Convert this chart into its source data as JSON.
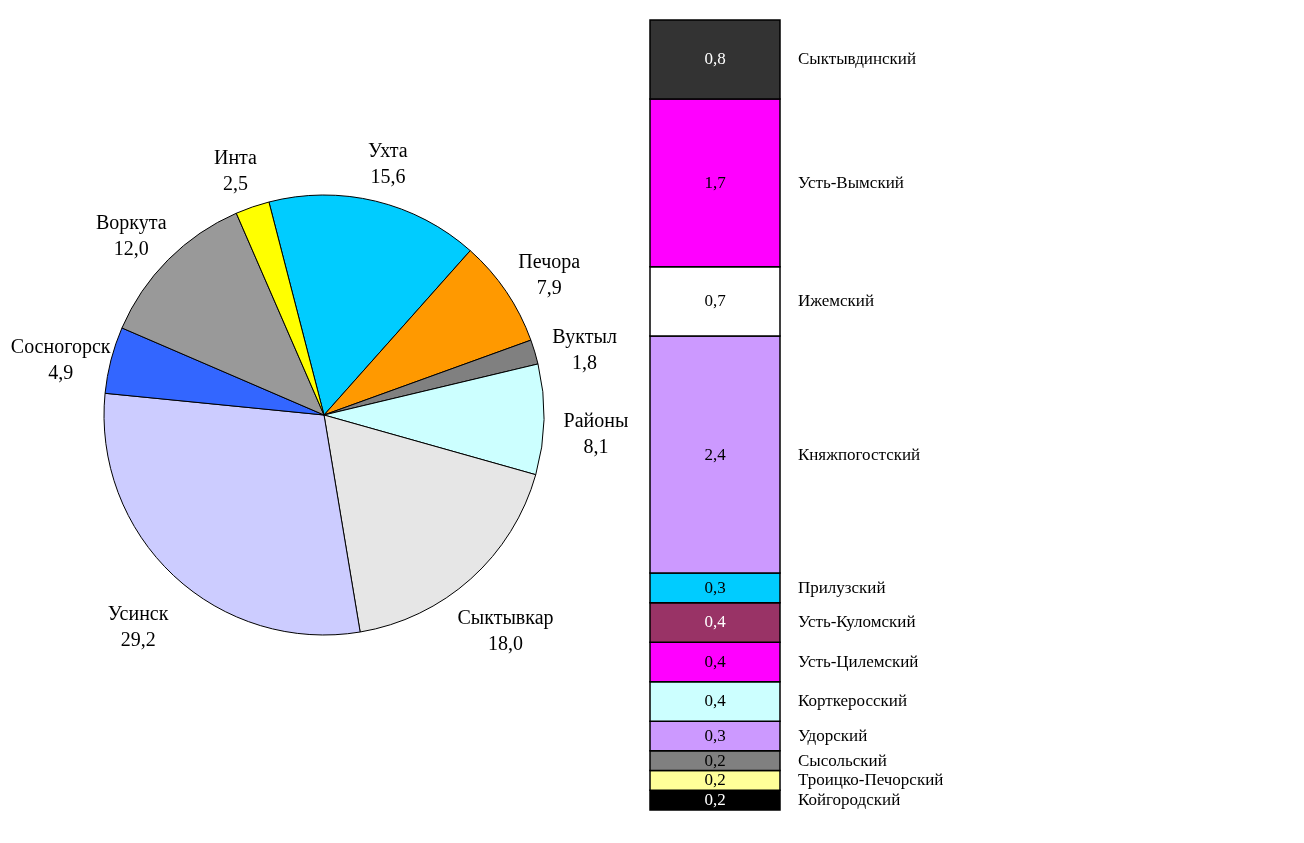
{
  "chart_data": [
    {
      "type": "pie",
      "categories": [
        "Ухта",
        "Печора",
        "Вуктыл",
        "Районы",
        "Сыктывкар",
        "Усинск",
        "Сосногорск",
        "Воркута",
        "Инта"
      ],
      "values": [
        15.6,
        7.9,
        1.8,
        8.1,
        18.0,
        29.2,
        4.9,
        12.0,
        2.5
      ],
      "value_labels": [
        "15,6",
        "7,9",
        "1,8",
        "8,1",
        "18,0",
        "29,2",
        "4,9",
        "12,0",
        "2,5"
      ],
      "colors": [
        "#00ccff",
        "#ff9900",
        "#808080",
        "#ccffff",
        "#e6e6e6",
        "#ccccff",
        "#3366ff",
        "#999999",
        "#ffff00"
      ]
    },
    {
      "type": "bar",
      "stacked": true,
      "categories": [
        null
      ],
      "series": [
        {
          "name": "Койгородский",
          "color": "#000000",
          "values": [
            0.2
          ],
          "value_labels": [
            "0,2"
          ]
        },
        {
          "name": "Троицко-Печорский",
          "color": "#ffff99",
          "values": [
            0.2
          ],
          "value_labels": [
            "0,2"
          ]
        },
        {
          "name": "Сысольский",
          "color": "#808080",
          "values": [
            0.2
          ],
          "value_labels": [
            "0,2"
          ]
        },
        {
          "name": "Удорский",
          "color": "#cc99ff",
          "values": [
            0.3
          ],
          "value_labels": [
            "0,3"
          ]
        },
        {
          "name": "Корткеросский",
          "color": "#ccffff",
          "values": [
            0.4
          ],
          "value_labels": [
            "0,4"
          ]
        },
        {
          "name": "Усть-Цилемский",
          "color": "#ff00ff",
          "values": [
            0.4
          ],
          "value_labels": [
            "0,4"
          ]
        },
        {
          "name": "Усть-Куломский",
          "color": "#993366",
          "values": [
            0.4
          ],
          "value_labels": [
            "0,4"
          ]
        },
        {
          "name": "Прилузский",
          "color": "#00ccff",
          "values": [
            0.3
          ],
          "value_labels": [
            "0,3"
          ]
        },
        {
          "name": "Княжпогостский",
          "color": "#cc99ff",
          "values": [
            2.4
          ],
          "value_labels": [
            "2,4"
          ]
        },
        {
          "name": "Ижемский",
          "color": "#ffffff",
          "values": [
            0.7
          ],
          "value_labels": [
            "0,7"
          ]
        },
        {
          "name": "Усть-Вымский",
          "color": "#ff00ff",
          "values": [
            1.7
          ],
          "value_labels": [
            "1,7"
          ]
        },
        {
          "name": "Сыктывдинский",
          "color": "#333333",
          "values": [
            0.8
          ],
          "value_labels": [
            "0,8"
          ]
        }
      ]
    }
  ]
}
